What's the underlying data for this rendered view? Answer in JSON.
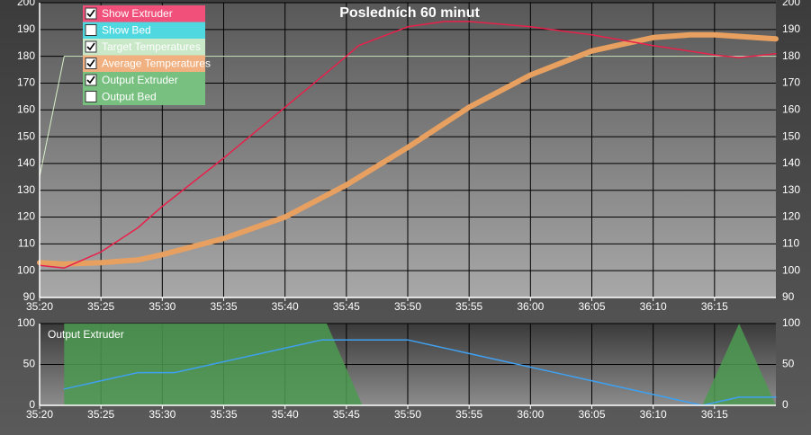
{
  "chart_data": [
    {
      "type": "line",
      "title": "Posledních 60 minut",
      "xlim": [
        2120,
        2180
      ],
      "xticks": [
        {
          "value": 2120,
          "label": "35:20"
        },
        {
          "value": 2125,
          "label": "35:25"
        },
        {
          "value": 2130,
          "label": "35:30"
        },
        {
          "value": 2135,
          "label": "35:35"
        },
        {
          "value": 2140,
          "label": "35:40"
        },
        {
          "value": 2145,
          "label": "35:45"
        },
        {
          "value": 2150,
          "label": "35:50"
        },
        {
          "value": 2155,
          "label": "35:55"
        },
        {
          "value": 2160,
          "label": "36:00"
        },
        {
          "value": 2165,
          "label": "36:05"
        },
        {
          "value": 2170,
          "label": "36:10"
        },
        {
          "value": 2175,
          "label": "36:15"
        }
      ],
      "ylim": [
        90,
        200
      ],
      "yticks": [
        90,
        100,
        110,
        120,
        130,
        140,
        150,
        160,
        170,
        180,
        190,
        200
      ],
      "grid": true,
      "series": [
        {
          "name": "Target Temperatures",
          "color": "#d8f0c8",
          "width": 1,
          "x": [
            2120,
            2122,
            2180
          ],
          "values": [
            135,
            180,
            180
          ]
        },
        {
          "name": "Average Temperatures",
          "color": "#e8a060",
          "width": 6,
          "x": [
            2120,
            2122,
            2125,
            2128,
            2130,
            2135,
            2140,
            2145,
            2150,
            2155,
            2160,
            2165,
            2170,
            2173,
            2175,
            2180
          ],
          "values": [
            103,
            102.5,
            103,
            104,
            106,
            112,
            120,
            132,
            146,
            161,
            173,
            182,
            187,
            188,
            188,
            186.5
          ]
        },
        {
          "name": "Show Extruder",
          "color": "#e8204a",
          "width": 1.5,
          "x": [
            2120,
            2122,
            2125,
            2128,
            2130,
            2135,
            2140,
            2145,
            2146,
            2150,
            2153,
            2155,
            2160,
            2165,
            2170,
            2175,
            2177,
            2180
          ],
          "values": [
            102,
            101,
            107,
            116,
            124,
            142,
            161,
            180,
            184,
            191,
            193,
            193,
            191,
            188,
            184,
            180.5,
            179.5,
            181
          ]
        }
      ]
    },
    {
      "type": "area",
      "label": "Output Extruder",
      "xlim": [
        2120,
        2180
      ],
      "xticks": [
        {
          "value": 2120,
          "label": "35:20"
        },
        {
          "value": 2125,
          "label": "35:25"
        },
        {
          "value": 2130,
          "label": "35:30"
        },
        {
          "value": 2135,
          "label": "35:35"
        },
        {
          "value": 2140,
          "label": "35:40"
        },
        {
          "value": 2145,
          "label": "35:45"
        },
        {
          "value": 2150,
          "label": "35:50"
        },
        {
          "value": 2155,
          "label": "35:55"
        },
        {
          "value": 2160,
          "label": "36:00"
        },
        {
          "value": 2165,
          "label": "36:05"
        },
        {
          "value": 2170,
          "label": "36:10"
        },
        {
          "value": 2175,
          "label": "36:15"
        }
      ],
      "ylim": [
        0,
        100
      ],
      "yticks": [
        0,
        50,
        100
      ],
      "grid": true,
      "series": [
        {
          "name": "Output Extruder",
          "color": "#4c9a50",
          "fill": true,
          "x": [
            2122,
            2122,
            2143.4,
            2146.3,
            2174,
            2177,
            2180
          ],
          "values": [
            0,
            100,
            100,
            0,
            0,
            100,
            0
          ]
        },
        {
          "color": "#40a0f0",
          "width": 1.5,
          "x": [
            2122,
            2128,
            2131,
            2143,
            2150,
            2174,
            2177,
            2180
          ],
          "values": [
            20,
            40,
            40,
            80,
            80,
            0,
            10,
            10
          ]
        }
      ]
    }
  ],
  "controls": [
    {
      "label": "Show Extruder",
      "checked": true,
      "color": "#f0507a"
    },
    {
      "label": "Show Bed",
      "checked": false,
      "color": "#50d8e0"
    },
    {
      "label": "Target Temperatures",
      "checked": true,
      "color": "#c8e8c8"
    },
    {
      "label": "Average Temperatures",
      "checked": true,
      "color": "#f0b080"
    },
    {
      "label": "Output Extruder",
      "checked": true,
      "color": "#78c080"
    },
    {
      "label": "Output Bed",
      "checked": false,
      "color": "#78c080"
    }
  ]
}
